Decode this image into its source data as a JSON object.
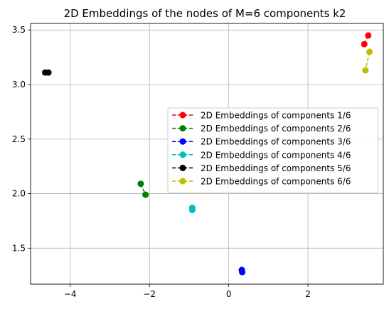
{
  "chart_data": {
    "type": "line",
    "title": "2D Embeddings of the nodes of M=6 components k2",
    "xlabel": "",
    "ylabel": "",
    "xlim": [
      -5.0,
      3.9
    ],
    "ylim": [
      1.17,
      3.56
    ],
    "xticks": [
      -4,
      -2,
      0,
      2
    ],
    "xtick_labels": [
      "−4",
      "−2",
      "0",
      "2"
    ],
    "yticks": [
      1.5,
      2.0,
      2.5,
      3.0,
      3.5
    ],
    "ytick_labels": [
      "1.5",
      "2.0",
      "2.5",
      "3.0",
      "3.5"
    ],
    "grid": true,
    "legend_position": "center-right",
    "series": [
      {
        "name": "2D Embeddings of components 1/6",
        "color": "#ff0000",
        "points": [
          [
            3.42,
            3.37
          ],
          [
            3.52,
            3.45
          ]
        ]
      },
      {
        "name": "2D Embeddings of components 2/6",
        "color": "#008000",
        "points": [
          [
            -2.22,
            2.09
          ],
          [
            -2.1,
            1.99
          ]
        ]
      },
      {
        "name": "2D Embeddings of components 3/6",
        "color": "#0000ff",
        "points": [
          [
            0.33,
            1.3
          ],
          [
            0.34,
            1.28
          ]
        ]
      },
      {
        "name": "2D Embeddings of components 4/6",
        "color": "#00bfbf",
        "points": [
          [
            -0.92,
            1.87
          ],
          [
            -0.92,
            1.85
          ]
        ]
      },
      {
        "name": "2D Embeddings of components 5/6",
        "color": "#000000",
        "points": [
          [
            -4.63,
            3.11
          ],
          [
            -4.55,
            3.11
          ]
        ]
      },
      {
        "name": "2D Embeddings of components 6/6",
        "color": "#bfbf00",
        "points": [
          [
            3.55,
            3.3
          ],
          [
            3.45,
            3.13
          ]
        ]
      }
    ]
  }
}
